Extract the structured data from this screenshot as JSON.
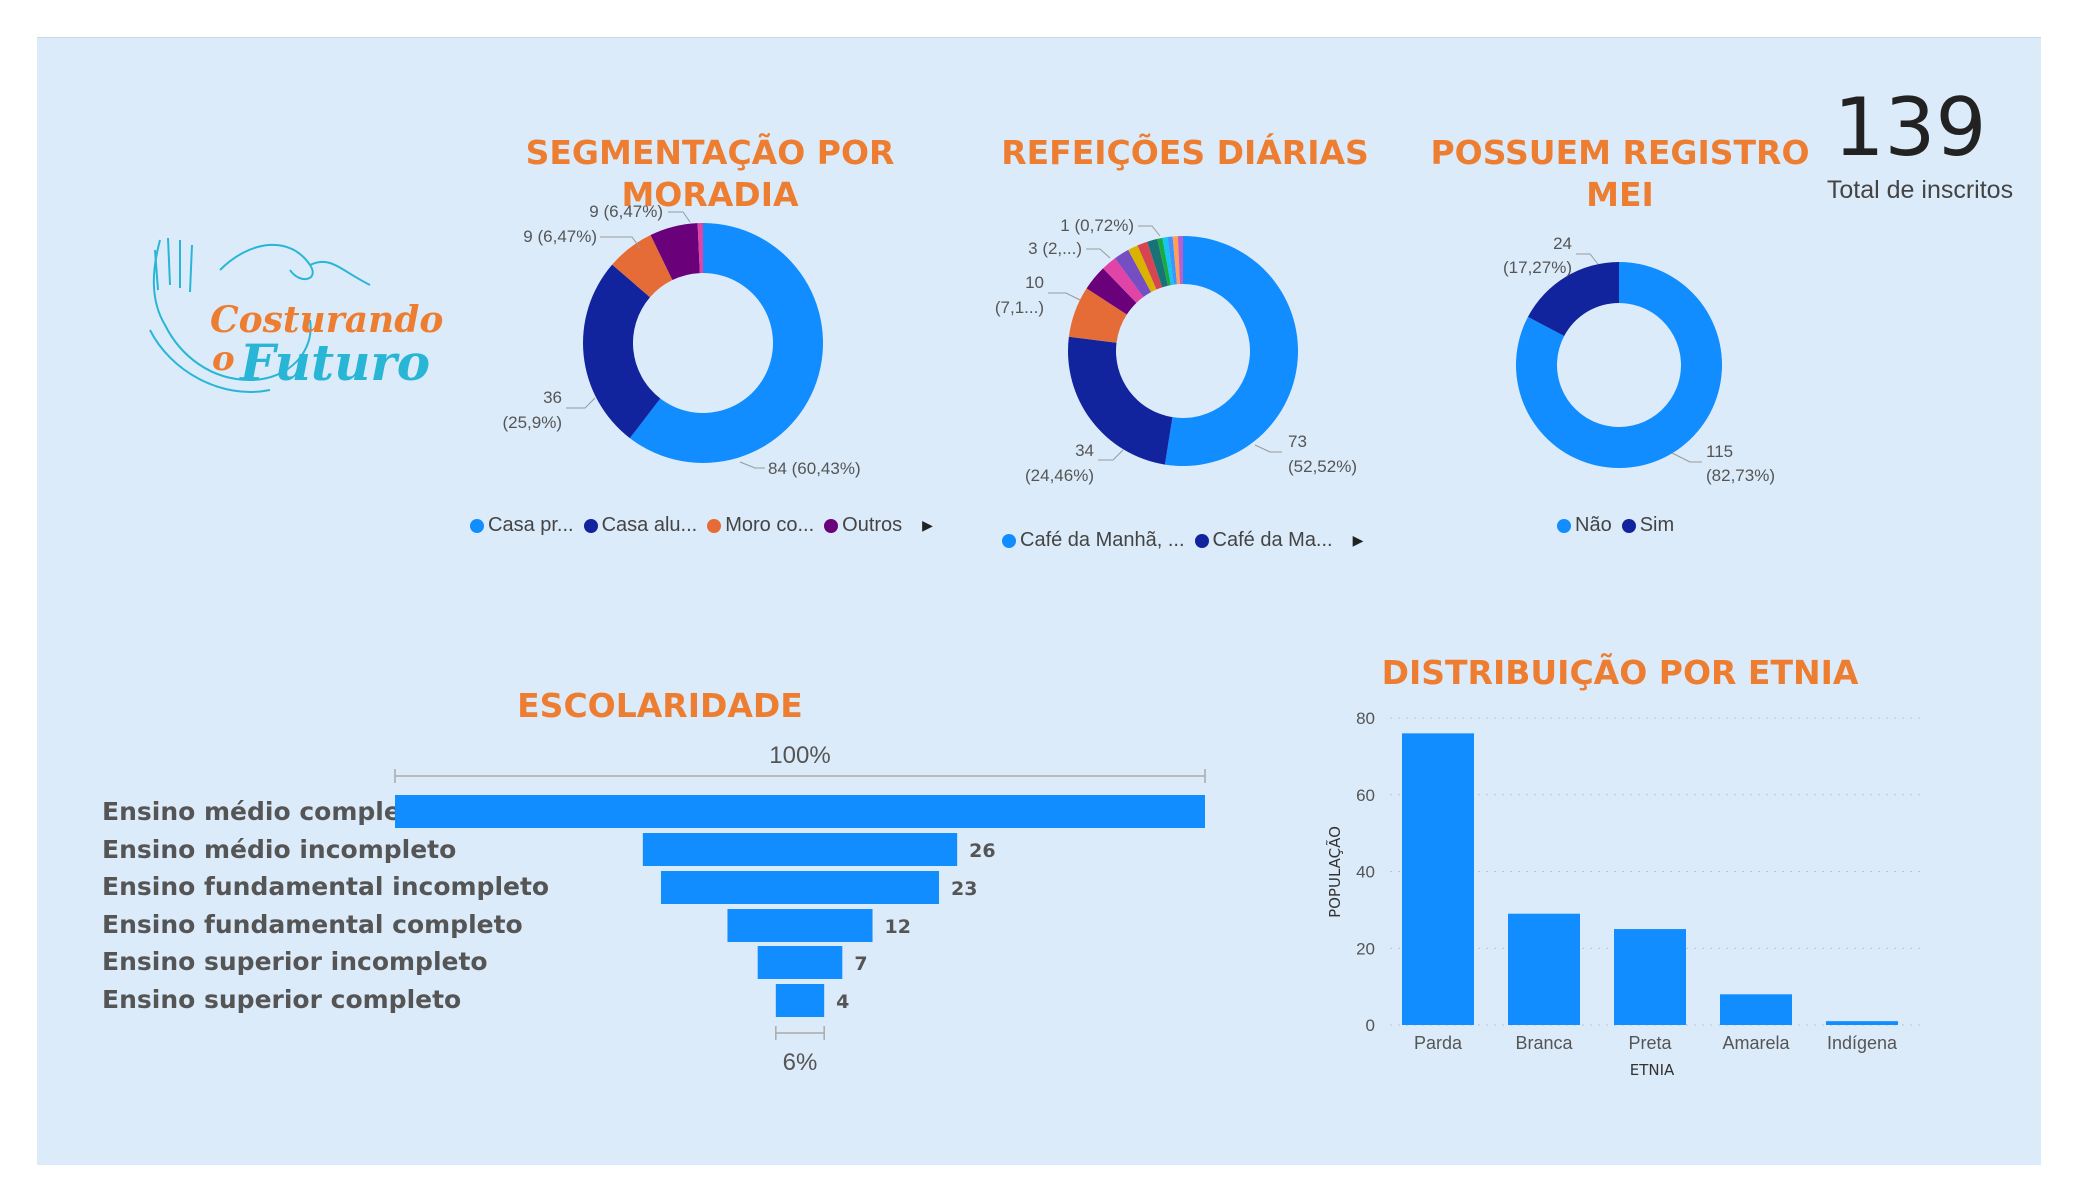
{
  "brand": {
    "logo_line1": "Costurando",
    "logo_line2_o": "o",
    "logo_line2": "Futuro"
  },
  "kpi": {
    "value": "139",
    "label": "Total de inscritos"
  },
  "colors": {
    "accent_orange": "#ed7d31",
    "blue": "#118dff",
    "navy": "#12239e",
    "orange": "#e66c37",
    "purple": "#6b007b",
    "background": "#dcebfa"
  },
  "chart_data": [
    {
      "type": "pie",
      "title": "SEGMENTAÇÃO POR MORADIA",
      "donut": true,
      "slices": [
        {
          "name": "Casa pr...",
          "value": 84,
          "label": "84 (60,43%)",
          "color": "#118dff"
        },
        {
          "name": "Casa alu...",
          "value": 36,
          "label_line1": "36",
          "label_line2": "(25,9%)",
          "color": "#12239e"
        },
        {
          "name": "Moro co...",
          "value": 9,
          "label": "9 (6,47%)",
          "color": "#e66c37"
        },
        {
          "name": "Outros",
          "value": 9,
          "label": "9 (6,47%)",
          "color": "#6b007b"
        },
        {
          "name": "",
          "value": 1,
          "label": "",
          "color": "#e044a7"
        }
      ],
      "legend": [
        "Casa pr...",
        "Casa alu...",
        "Moro co...",
        "Outros"
      ]
    },
    {
      "type": "pie",
      "title": "REFEIÇÕES DIÁRIAS",
      "donut": true,
      "slices": [
        {
          "name": "Café da Manhã, ...",
          "value": 73,
          "label_line1": "73",
          "label_line2": "(52,52%)",
          "color": "#118dff"
        },
        {
          "name": "Café da Ma...",
          "value": 34,
          "label_line1": "34",
          "label_line2": "(24,46%)",
          "color": "#12239e"
        },
        {
          "name": "",
          "value": 10,
          "label_line1": "10",
          "label_line2": "(7,1...)",
          "color": "#e66c37"
        },
        {
          "name": "",
          "value": 5,
          "label": "",
          "color": "#6b007b"
        },
        {
          "name": "",
          "value": 3,
          "label": "3 (2,...)",
          "color": "#e044a7"
        },
        {
          "name": "",
          "value": 3,
          "label": "",
          "color": "#744ec2"
        },
        {
          "name": "",
          "value": 2,
          "label": "",
          "color": "#d9b300"
        },
        {
          "name": "",
          "value": 2,
          "label": "",
          "color": "#d64550"
        },
        {
          "name": "",
          "value": 2,
          "label": "",
          "color": "#197278"
        },
        {
          "name": "",
          "value": 1,
          "label": "",
          "color": "#1aab40"
        },
        {
          "name": "",
          "value": 1,
          "label": "",
          "color": "#15c6f4"
        },
        {
          "name": "",
          "value": 1,
          "label": "",
          "color": "#4092ff"
        },
        {
          "name": "",
          "value": 1,
          "label": "",
          "color": "#ffa058"
        },
        {
          "name": "",
          "value": 1,
          "label": "1 (0,72%)",
          "color": "#be5dc9"
        }
      ],
      "legend": [
        "Café da Manhã, ...",
        "Café da Ma..."
      ]
    },
    {
      "type": "pie",
      "title": "POSSUEM REGISTRO MEI",
      "title_line1": "POSSUEM REGISTRO",
      "title_line2": "MEI",
      "donut": true,
      "slices": [
        {
          "name": "Não",
          "value": 115,
          "label_line1": "115",
          "label_line2": "(82,73%)",
          "color": "#118dff"
        },
        {
          "name": "Sim",
          "value": 24,
          "label_line1": "24",
          "label_line2": "(17,27%)",
          "color": "#12239e"
        }
      ],
      "legend": [
        "Não",
        "Sim"
      ]
    },
    {
      "type": "bar",
      "orientation": "funnel",
      "title": "ESCOLARIDADE",
      "categories": [
        "Ensino médio completo",
        "Ensino médio incompleto",
        "Ensino fundamental incompleto",
        "Ensino fundamental completo",
        "Ensino superior incompleto",
        "Ensino superior completo"
      ],
      "values": [
        67,
        26,
        23,
        12,
        7,
        4
      ],
      "data_labels": [
        "",
        "26",
        "23",
        "12",
        "7",
        "4"
      ],
      "top_percent_label": "100%",
      "bottom_percent_label": "6%",
      "color": "#118dff"
    },
    {
      "type": "bar",
      "title": "DISTRIBUIÇÃO POR ETNIA",
      "categories": [
        "Parda",
        "Branca",
        "Preta",
        "Amarela",
        "Indígena"
      ],
      "values": [
        76,
        29,
        25,
        8,
        1
      ],
      "xlabel": "ETNIA",
      "ylabel": "POPULAÇÃO",
      "ylim": [
        0,
        80
      ],
      "yticks": [
        "0",
        "20",
        "40",
        "60",
        "80"
      ],
      "grid": true,
      "color": "#118dff"
    }
  ]
}
